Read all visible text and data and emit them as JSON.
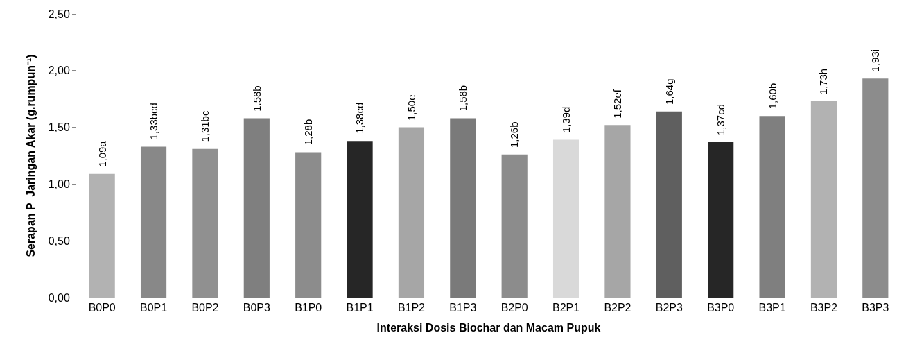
{
  "chart_data": {
    "type": "bar",
    "xlabel": "Interaksi Dosis Biochar dan Macam Pupuk",
    "ylabel": "Serapan P  Jaringan Akar (g.rumpun⁻¹)",
    "categories": [
      "B0P0",
      "B0P1",
      "B0P2",
      "B0P3",
      "B1P0",
      "B1P1",
      "B1P2",
      "B1P3",
      "B2P0",
      "B2P1",
      "B2P2",
      "B2P3",
      "B3P0",
      "B3P1",
      "B3P2",
      "B3P3"
    ],
    "values": [
      1.09,
      1.33,
      1.31,
      1.58,
      1.28,
      1.38,
      1.5,
      1.58,
      1.26,
      1.39,
      1.52,
      1.64,
      1.37,
      1.6,
      1.73,
      1.93
    ],
    "colors": [
      "#b2b2b2",
      "#888888",
      "#909090",
      "#7f7f7f",
      "#8c8c8c",
      "#262626",
      "#a6a6a6",
      "#7a7a7a",
      "#8c8c8c",
      "#d9d9d9",
      "#a6a6a6",
      "#5f5f5f",
      "#262626",
      "#7f7f7f",
      "#b2b2b2",
      "#8c8c8c"
    ],
    "value_labels": [
      "1,09a",
      "1,33bcd",
      "1,31bc",
      "1.58b",
      "1,28b",
      "1,38cd",
      "1,50e",
      "1,58b",
      "1,26b",
      "1,39d",
      "1,52ef",
      "1,64g",
      "1,37cd",
      "1,60b",
      "1,73h",
      "1,93i"
    ],
    "ylim": [
      0,
      2.5
    ],
    "yticks": [
      {
        "value": 0,
        "label": "0,00"
      },
      {
        "value": 0.5,
        "label": "0,50"
      },
      {
        "value": 1,
        "label": "1,00"
      },
      {
        "value": 1.5,
        "label": "1,50"
      },
      {
        "value": 2,
        "label": "2,00"
      },
      {
        "value": 2.5,
        "label": "2,50"
      }
    ]
  }
}
